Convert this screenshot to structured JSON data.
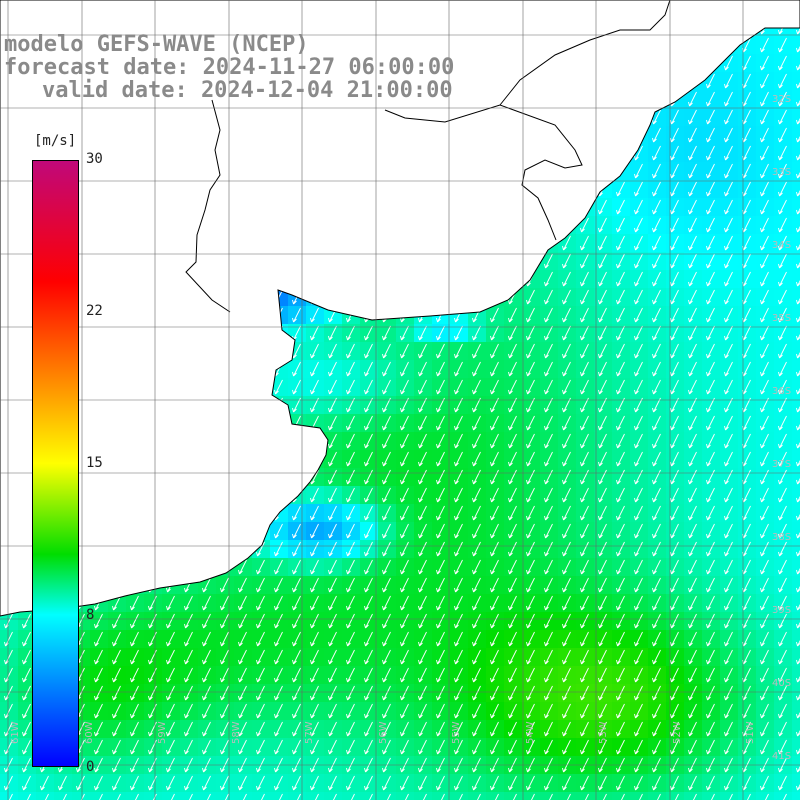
{
  "title": {
    "line1": "modelo GEFS-WAVE (NCEP)",
    "line2": "forecast date: 2024-11-27 06:00:00",
    "line3": "valid date: 2024-12-04 21:00:00"
  },
  "colorbar": {
    "unit": "[m/s]",
    "ticks": [
      "30",
      "22",
      "15",
      "8",
      "0"
    ],
    "tick_values": [
      30,
      22,
      15,
      8,
      0
    ],
    "colors": [
      "#c0087a",
      "#ff0000",
      "#ff7f00",
      "#ffff00",
      "#00dd00",
      "#00ffff",
      "#0077ff",
      "#0000ff"
    ]
  },
  "map": {
    "longitude_labels": [
      "61W",
      "60W",
      "59W",
      "58W",
      "57W",
      "56W",
      "55W",
      "54W",
      "53W",
      "52W",
      "51W"
    ],
    "latitude_labels": [
      "32S",
      "33S",
      "34S",
      "35S",
      "36S",
      "37S",
      "38S",
      "39S",
      "40S",
      "41S"
    ],
    "grid_color": "#666666",
    "land_color": "#ffffff",
    "coast_color": "#000000",
    "arrow_color": "#ffffff",
    "field_name": "wind speed",
    "wind_direction": "from NE"
  }
}
